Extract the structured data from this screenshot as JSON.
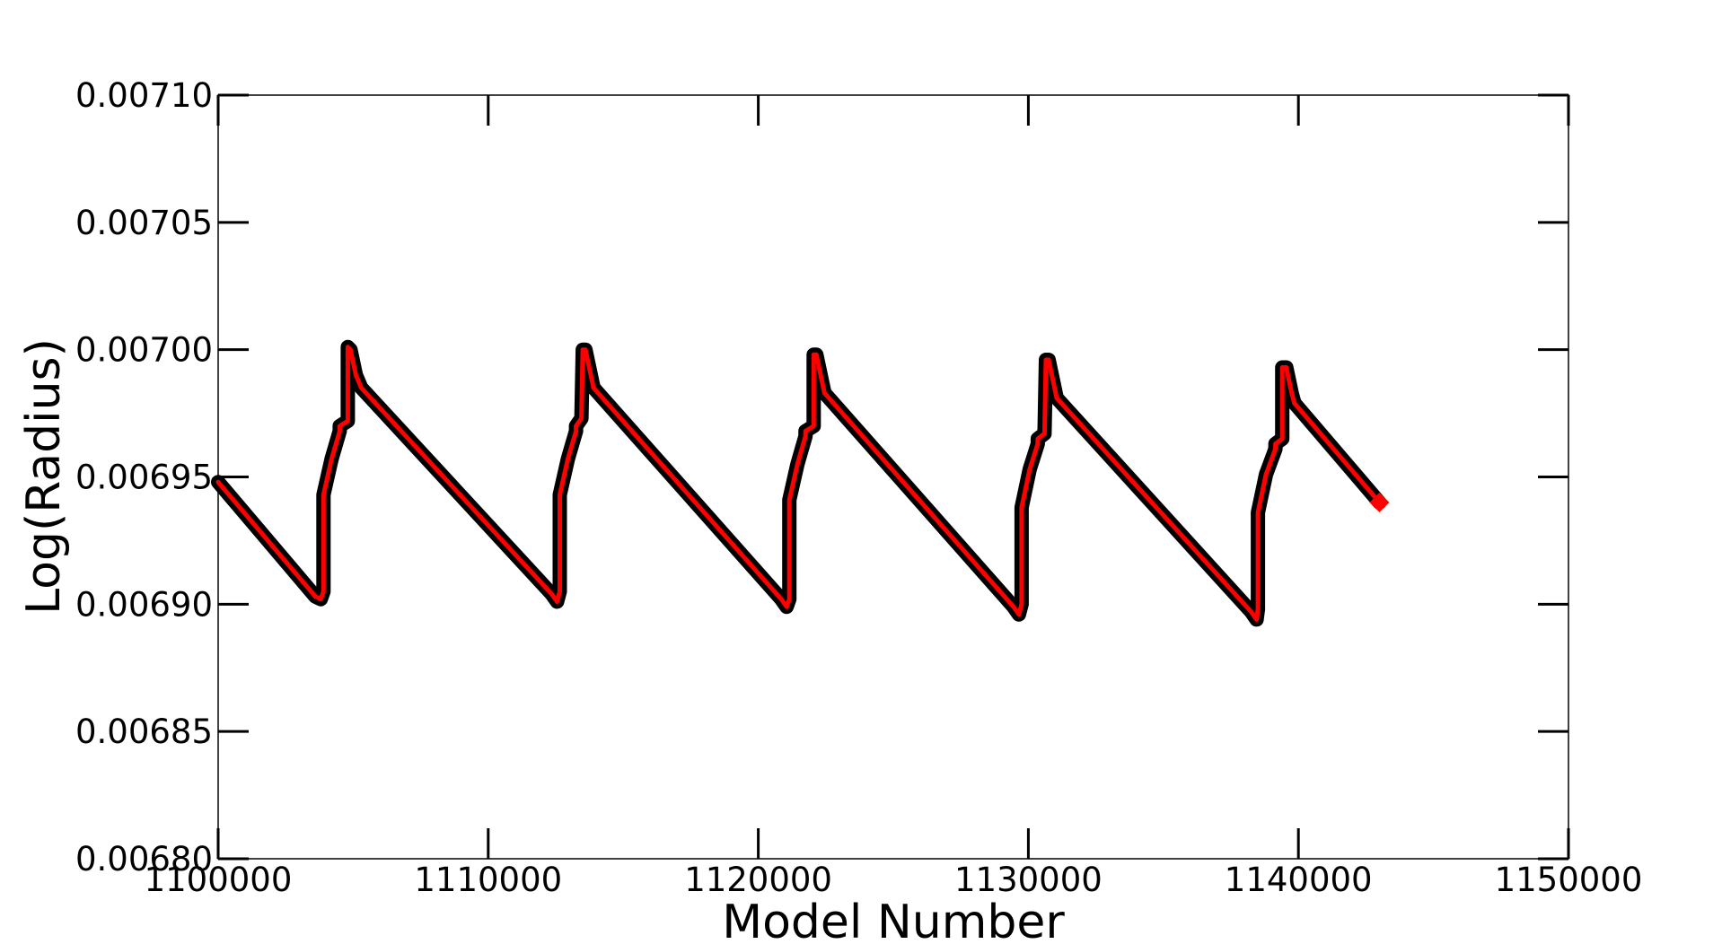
{
  "chart_data": {
    "type": "line",
    "title": "",
    "xlabel": "Model Number",
    "ylabel": "Log(Radius)",
    "xlim": [
      1100000,
      1150000
    ],
    "ylim": [
      0.0068,
      0.0071
    ],
    "grid": false,
    "x_ticks": [
      1100000,
      1110000,
      1120000,
      1130000,
      1140000,
      1150000
    ],
    "x_tick_labels": [
      "1100000",
      "1110000",
      "1120000",
      "1130000",
      "1140000",
      "1150000"
    ],
    "y_ticks": [
      0.0068,
      0.00685,
      0.0069,
      0.00695,
      0.007,
      0.00705,
      0.0071
    ],
    "y_tick_labels": [
      "0.00680",
      "0.00685",
      "0.00690",
      "0.00695",
      "0.00700",
      "0.00705",
      "0.00710"
    ],
    "series": [
      {
        "color": "#ff0000",
        "outline_color": "#000000",
        "x": [
          1100000,
          1103600,
          1103800,
          1103900,
          1103900,
          1104200,
          1104500,
          1104500,
          1104800,
          1104800,
          1104900,
          1105100,
          1105300,
          1112350,
          1112550,
          1112650,
          1112650,
          1112950,
          1113250,
          1113250,
          1113450,
          1113500,
          1113600,
          1113800,
          1113900,
          1120850,
          1121050,
          1121150,
          1121150,
          1121450,
          1121750,
          1121750,
          1122050,
          1122050,
          1122150,
          1122350,
          1122450,
          1129450,
          1129650,
          1129750,
          1129750,
          1130050,
          1130350,
          1130350,
          1130600,
          1130650,
          1130750,
          1130950,
          1131050,
          1138250,
          1138450,
          1138500,
          1138500,
          1138800,
          1139150,
          1139150,
          1139400,
          1139400,
          1139550,
          1139750,
          1139850,
          1143000
        ],
        "y": [
          0.006948,
          0.006903,
          0.006902,
          0.006905,
          0.006943,
          0.006957,
          0.006968,
          0.00697,
          0.006972,
          0.007001,
          0.007,
          0.00699,
          0.006985,
          0.006904,
          0.006901,
          0.006905,
          0.006943,
          0.006957,
          0.006968,
          0.00697,
          0.006973,
          0.007,
          0.007,
          0.00699,
          0.006985,
          0.006902,
          0.006899,
          0.006902,
          0.006941,
          0.006955,
          0.006966,
          0.006968,
          0.00697,
          0.006998,
          0.006998,
          0.006988,
          0.006983,
          0.006899,
          0.006896,
          0.0069,
          0.006938,
          0.006953,
          0.006963,
          0.006965,
          0.006967,
          0.006996,
          0.006996,
          0.006986,
          0.006981,
          0.006897,
          0.006894,
          0.006898,
          0.006936,
          0.006951,
          0.006961,
          0.006963,
          0.006965,
          0.006993,
          0.006993,
          0.006983,
          0.006979,
          0.00694
        ]
      }
    ]
  }
}
